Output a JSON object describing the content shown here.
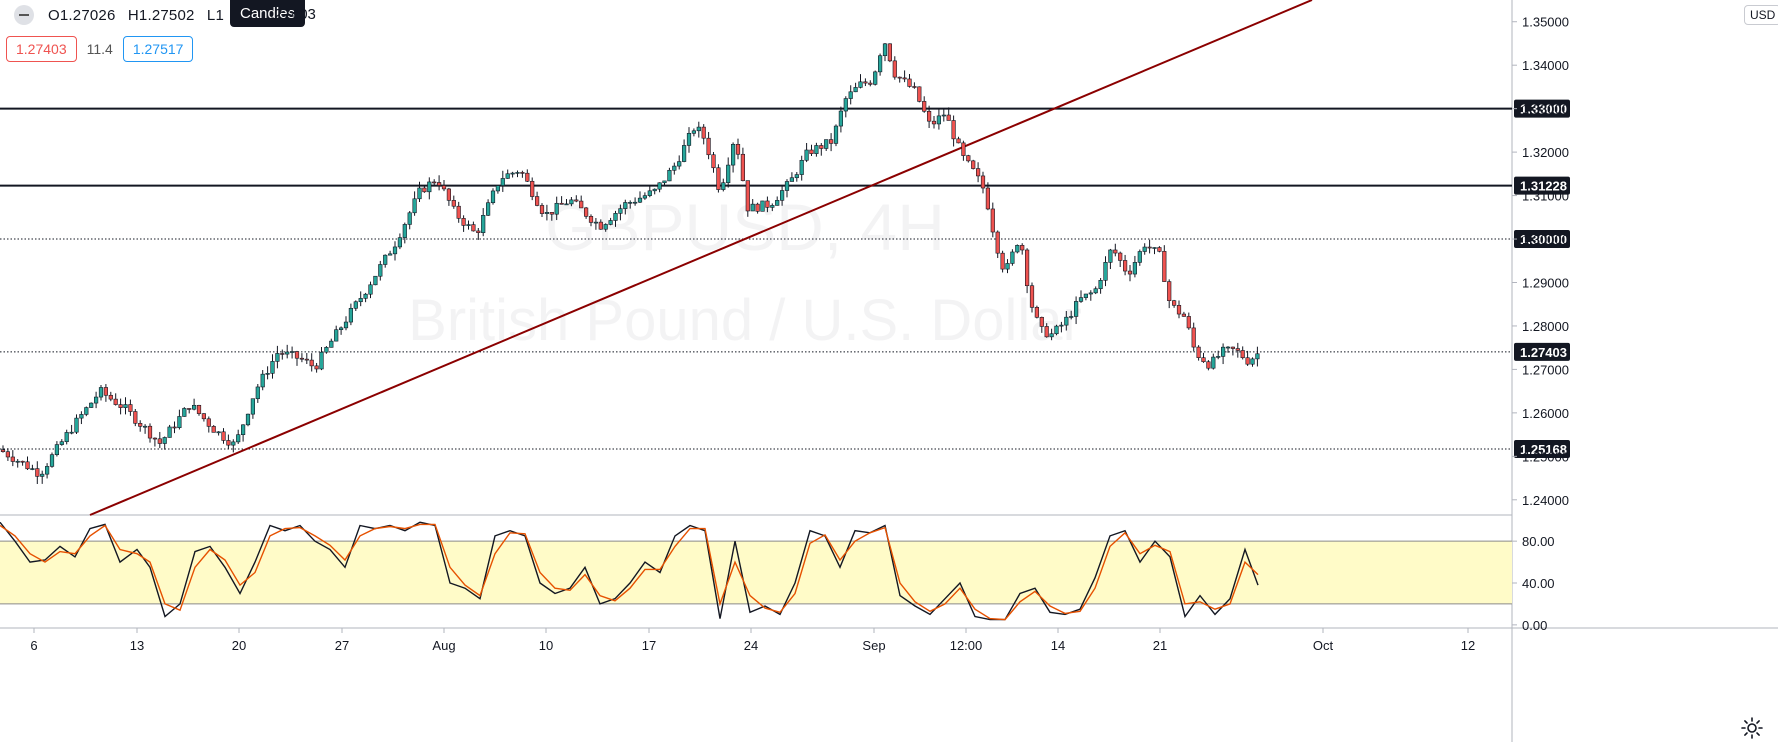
{
  "legend": {
    "open": "O1.27026",
    "high": "H1.27502",
    "low": "L1",
    "close": ".27403",
    "tooltip": "Candles",
    "bid": "1.27403",
    "spread": "11.4",
    "ask": "1.27517"
  },
  "watermark": {
    "line1": "GBPUSD, 4H",
    "line2": "British Pound / U.S. Dollar"
  },
  "currency_label": "USD",
  "chart_data": [
    {
      "type": "candlestick",
      "title": "",
      "ylim": [
        1.2365,
        1.355
      ],
      "yticks": [
        {
          "value": 1.24,
          "label": "1.24000"
        },
        {
          "value": 1.25,
          "label": "1.25000"
        },
        {
          "value": 1.26,
          "label": "1.26000"
        },
        {
          "value": 1.27,
          "label": "1.27000"
        },
        {
          "value": 1.28,
          "label": "1.28000"
        },
        {
          "value": 1.29,
          "label": "1.29000"
        },
        {
          "value": 1.3,
          "label": "1.30000"
        },
        {
          "value": 1.31,
          "label": "1.31000"
        },
        {
          "value": 1.32,
          "label": "1.32000"
        },
        {
          "value": 1.33,
          "label": "1.33000"
        },
        {
          "value": 1.34,
          "label": "1.34000"
        },
        {
          "value": 1.35,
          "label": "1.35000"
        }
      ],
      "xlim": [
        0,
        1720
      ],
      "xticks": [
        {
          "label": "6",
          "x": 34
        },
        {
          "label": "13",
          "x": 137
        },
        {
          "label": "20",
          "x": 239
        },
        {
          "label": "27",
          "x": 342
        },
        {
          "label": "Aug",
          "x": 444
        },
        {
          "label": "10",
          "x": 546
        },
        {
          "label": "17",
          "x": 649
        },
        {
          "label": "24",
          "x": 751
        },
        {
          "label": "Sep",
          "x": 874
        },
        {
          "label": "12:00",
          "x": 966
        },
        {
          "label": "14",
          "x": 1058
        },
        {
          "label": "21",
          "x": 1160
        },
        {
          "label": "Oct",
          "x": 1323
        },
        {
          "label": "12",
          "x": 1468
        }
      ],
      "candle_colors": {
        "up": "#26a69a",
        "down": "#ef5350",
        "outline": "#131722"
      },
      "price_path": [
        [
          0,
          1.2515
        ],
        [
          40,
          1.246
        ],
        [
          70,
          1.256
        ],
        [
          100,
          1.265
        ],
        [
          125,
          1.261
        ],
        [
          160,
          1.253
        ],
        [
          190,
          1.262
        ],
        [
          215,
          1.256
        ],
        [
          235,
          1.2525
        ],
        [
          255,
          1.265
        ],
        [
          278,
          1.274
        ],
        [
          300,
          1.2725
        ],
        [
          315,
          1.2705
        ],
        [
          330,
          1.276
        ],
        [
          365,
          1.288
        ],
        [
          395,
          1.299
        ],
        [
          420,
          1.311
        ],
        [
          437,
          1.314
        ],
        [
          455,
          1.306
        ],
        [
          476,
          1.301
        ],
        [
          500,
          1.314
        ],
        [
          520,
          1.316
        ],
        [
          545,
          1.3055
        ],
        [
          570,
          1.309
        ],
        [
          600,
          1.303
        ],
        [
          625,
          1.308
        ],
        [
          655,
          1.311
        ],
        [
          675,
          1.317
        ],
        [
          695,
          1.326
        ],
        [
          705,
          1.323
        ],
        [
          720,
          1.311
        ],
        [
          735,
          1.324
        ],
        [
          748,
          1.307
        ],
        [
          770,
          1.308
        ],
        [
          790,
          1.313
        ],
        [
          808,
          1.32
        ],
        [
          832,
          1.3225
        ],
        [
          845,
          1.332
        ],
        [
          860,
          1.3355
        ],
        [
          872,
          1.3365
        ],
        [
          884,
          1.346
        ],
        [
          895,
          1.338
        ],
        [
          915,
          1.334
        ],
        [
          930,
          1.326
        ],
        [
          945,
          1.329
        ],
        [
          962,
          1.319
        ],
        [
          975,
          1.315
        ],
        [
          985,
          1.311
        ],
        [
          995,
          1.3
        ],
        [
          1005,
          1.292
        ],
        [
          1020,
          1.301
        ],
        [
          1030,
          1.286
        ],
        [
          1040,
          1.279
        ],
        [
          1052,
          1.278
        ],
        [
          1065,
          1.281
        ],
        [
          1080,
          1.286
        ],
        [
          1095,
          1.288
        ],
        [
          1112,
          1.298
        ],
        [
          1128,
          1.292
        ],
        [
          1145,
          1.299
        ],
        [
          1160,
          1.296
        ],
        [
          1170,
          1.285
        ],
        [
          1185,
          1.282
        ],
        [
          1195,
          1.274
        ],
        [
          1210,
          1.271
        ],
        [
          1222,
          1.274
        ],
        [
          1235,
          1.2745
        ],
        [
          1248,
          1.272
        ],
        [
          1260,
          1.274
        ]
      ],
      "horizontal_levels": [
        {
          "value": 1.33,
          "style": "solid",
          "label": "1.33000"
        },
        {
          "value": 1.31228,
          "style": "solid",
          "label": "1.31228"
        },
        {
          "value": 1.3,
          "style": "dotted",
          "label": "1.30000"
        },
        {
          "value": 1.27403,
          "style": "dotted",
          "label": "1.27403"
        },
        {
          "value": 1.25168,
          "style": "dotted",
          "label": "1.25168"
        }
      ],
      "trendline": {
        "color": "#8b0000",
        "points": [
          [
            90,
            1.2365
          ],
          [
            1312,
            1.355
          ]
        ]
      }
    },
    {
      "type": "line",
      "title": "",
      "ylim": [
        -3,
        105
      ],
      "yticks": [
        {
          "value": 0,
          "label": "0.00"
        },
        {
          "value": 40,
          "label": "40.00"
        },
        {
          "value": 80,
          "label": "80.00"
        }
      ],
      "band": {
        "low": 20,
        "high": 80,
        "color": "#fffbc8"
      },
      "series": [
        {
          "color": "#131722",
          "x": [
            0,
            15,
            30,
            45,
            60,
            75,
            90,
            105,
            120,
            137,
            150,
            165,
            180,
            195,
            210,
            225,
            240,
            255,
            270,
            285,
            300,
            315,
            330,
            345,
            360,
            375,
            390,
            405,
            420,
            435,
            450,
            465,
            480,
            495,
            510,
            525,
            540,
            555,
            570,
            585,
            600,
            615,
            630,
            645,
            660,
            675,
            690,
            705,
            720,
            735,
            750,
            765,
            780,
            795,
            810,
            825,
            840,
            855,
            870,
            885,
            900,
            915,
            930,
            945,
            960,
            975,
            990,
            1005,
            1020,
            1035,
            1050,
            1065,
            1080,
            1095,
            1110,
            1125,
            1140,
            1155,
            1170,
            1185,
            1200,
            1215,
            1230,
            1245,
            1258
          ],
          "values": [
            98,
            80,
            60,
            62,
            75,
            65,
            92,
            96,
            60,
            72,
            55,
            8,
            20,
            70,
            75,
            55,
            30,
            60,
            95,
            90,
            95,
            80,
            72,
            55,
            95,
            92,
            95,
            90,
            98,
            95,
            40,
            35,
            25,
            85,
            90,
            85,
            40,
            30,
            35,
            55,
            20,
            25,
            40,
            60,
            50,
            85,
            95,
            90,
            6,
            80,
            12,
            18,
            10,
            40,
            90,
            85,
            55,
            90,
            88,
            95,
            28,
            18,
            10,
            25,
            40,
            8,
            5,
            5,
            30,
            35,
            12,
            10,
            15,
            45,
            85,
            90,
            60,
            80,
            65,
            8,
            28,
            10,
            25,
            72,
            38
          ]
        },
        {
          "color": "#e65100",
          "x": [
            0,
            15,
            30,
            45,
            60,
            75,
            90,
            105,
            120,
            137,
            150,
            165,
            180,
            195,
            210,
            225,
            240,
            255,
            270,
            285,
            300,
            315,
            330,
            345,
            360,
            375,
            390,
            405,
            420,
            435,
            450,
            465,
            480,
            495,
            510,
            525,
            540,
            555,
            570,
            585,
            600,
            615,
            630,
            645,
            660,
            675,
            690,
            705,
            720,
            735,
            750,
            765,
            780,
            795,
            810,
            825,
            840,
            855,
            870,
            885,
            900,
            915,
            930,
            945,
            960,
            975,
            990,
            1005,
            1020,
            1035,
            1050,
            1065,
            1080,
            1095,
            1110,
            1125,
            1140,
            1155,
            1170,
            1185,
            1200,
            1215,
            1230,
            1245,
            1258
          ],
          "values": [
            95,
            85,
            68,
            60,
            70,
            68,
            85,
            95,
            72,
            68,
            60,
            20,
            14,
            55,
            72,
            62,
            38,
            50,
            85,
            92,
            93,
            85,
            76,
            62,
            85,
            92,
            94,
            92,
            96,
            96,
            55,
            38,
            28,
            68,
            88,
            87,
            50,
            35,
            33,
            48,
            28,
            23,
            35,
            53,
            53,
            75,
            92,
            92,
            20,
            60,
            28,
            16,
            12,
            30,
            78,
            86,
            62,
            80,
            88,
            93,
            40,
            22,
            13,
            20,
            35,
            15,
            6,
            5,
            22,
            32,
            18,
            11,
            13,
            35,
            75,
            88,
            68,
            76,
            70,
            20,
            22,
            15,
            20,
            60,
            48
          ]
        }
      ]
    }
  ]
}
